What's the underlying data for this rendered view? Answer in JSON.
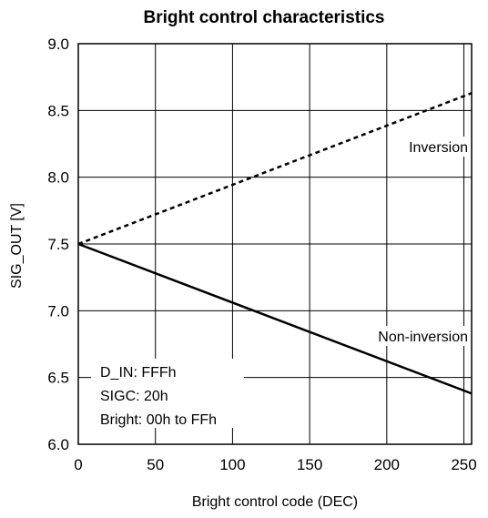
{
  "chart_data": {
    "type": "line",
    "title": "Bright control characteristics",
    "xlabel": "Bright control code (DEC)",
    "ylabel": "SIG_OUT [V]",
    "xlim": [
      0,
      255
    ],
    "ylim": [
      6.0,
      9.0
    ],
    "x_ticks": [
      "0",
      "50",
      "100",
      "150",
      "200",
      "250"
    ],
    "x_tick_values": [
      0,
      50,
      100,
      150,
      200,
      250
    ],
    "y_ticks": [
      "6.0",
      "6.5",
      "7.0",
      "7.5",
      "8.0",
      "8.5",
      "9.0"
    ],
    "y_tick_values": [
      6.0,
      6.5,
      7.0,
      7.5,
      8.0,
      8.5,
      9.0
    ],
    "grid": true,
    "series": [
      {
        "name": "Inversion",
        "style": "dashed",
        "x": [
          0,
          255
        ],
        "y": [
          7.5,
          8.63
        ]
      },
      {
        "name": "Non-inversion",
        "style": "solid",
        "x": [
          0,
          255
        ],
        "y": [
          7.5,
          6.38
        ]
      }
    ],
    "annotation_box": [
      "D_IN: FFFh",
      "SIGC: 20h",
      "Bright: 00h to FFh"
    ]
  }
}
